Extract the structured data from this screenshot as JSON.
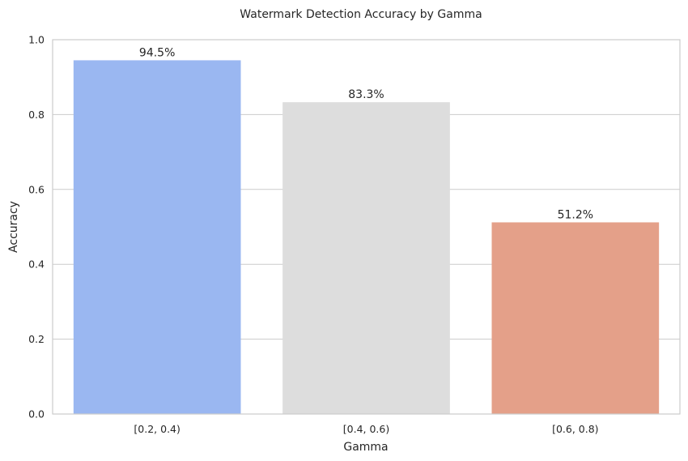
{
  "chart_data": {
    "type": "bar",
    "title": "Watermark Detection Accuracy by Gamma",
    "xlabel": "Gamma",
    "ylabel": "Accuracy",
    "categories": [
      "[0.2, 0.4)",
      "[0.4, 0.6)",
      "[0.6, 0.8)"
    ],
    "values": [
      0.945,
      0.833,
      0.512
    ],
    "value_labels": [
      "94.5%",
      "83.3%",
      "51.2%"
    ],
    "colors": [
      "#9ab7f1",
      "#dddddd",
      "#e4a089"
    ],
    "ylim": [
      0,
      1.0
    ],
    "yticks": [
      0.0,
      0.2,
      0.4,
      0.6,
      0.8,
      1.0
    ],
    "ytick_labels": [
      "0.0",
      "0.2",
      "0.4",
      "0.6",
      "0.8",
      "1.0"
    ],
    "grid": true
  }
}
